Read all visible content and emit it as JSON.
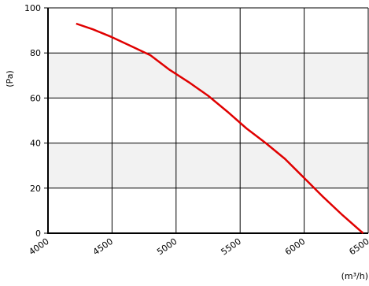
{
  "chart_data": {
    "type": "line",
    "title": "",
    "xlabel": "(m³/h)",
    "ylabel": "(Pa)",
    "xlim": [
      4000,
      6500
    ],
    "ylim": [
      0,
      100
    ],
    "x_ticks": [
      "4000",
      "4500",
      "5000",
      "5500",
      "6000",
      "6500"
    ],
    "y_ticks": [
      "0",
      "20",
      "40",
      "60",
      "80",
      "100"
    ],
    "grid": true,
    "band_color": "#f2f2f2",
    "series": [
      {
        "color": "#e00000",
        "points": [
          [
            4220,
            93
          ],
          [
            4350,
            90.5
          ],
          [
            4500,
            87
          ],
          [
            4650,
            83
          ],
          [
            4800,
            79
          ],
          [
            4950,
            72.5
          ],
          [
            5100,
            67
          ],
          [
            5250,
            61
          ],
          [
            5400,
            54
          ],
          [
            5550,
            46.5
          ],
          [
            5700,
            40
          ],
          [
            5850,
            33
          ],
          [
            6000,
            24.5
          ],
          [
            6150,
            16
          ],
          [
            6300,
            8
          ],
          [
            6420,
            2
          ],
          [
            6460,
            0
          ]
        ]
      }
    ]
  }
}
